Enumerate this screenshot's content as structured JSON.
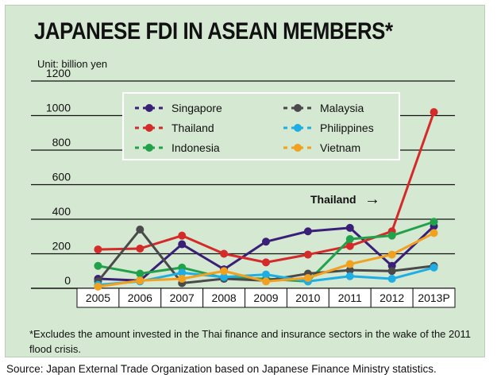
{
  "chart_data": {
    "type": "line",
    "title": "JAPANESE FDI IN ASEAN MEMBERS*",
    "unit_label": "Unit: billion yen",
    "categories": [
      "2005",
      "2006",
      "2007",
      "2008",
      "2009",
      "2010",
      "2011",
      "2012",
      "2013P"
    ],
    "ylim": [
      0,
      1200
    ],
    "yticks": [
      0,
      200,
      400,
      600,
      800,
      1000,
      1200
    ],
    "grid": true,
    "legend_position": "top",
    "series": [
      {
        "name": "Singapore",
        "color": "#3a1f78",
        "values": [
          55,
          45,
          255,
          110,
          270,
          330,
          350,
          130,
          360
        ]
      },
      {
        "name": "Thailand",
        "color": "#d42a2a",
        "values": [
          225,
          230,
          305,
          200,
          150,
          195,
          245,
          330,
          1020
        ]
      },
      {
        "name": "Indonesia",
        "color": "#21a24a",
        "values": [
          130,
          85,
          120,
          60,
          55,
          40,
          285,
          305,
          385
        ]
      },
      {
        "name": "Malaysia",
        "color": "#4a4a4a",
        "values": [
          40,
          340,
          30,
          55,
          45,
          85,
          105,
          100,
          130
        ]
      },
      {
        "name": "Philippines",
        "color": "#1eaee4",
        "values": [
          20,
          40,
          90,
          65,
          80,
          40,
          70,
          55,
          120
        ]
      },
      {
        "name": "Vietnam",
        "color": "#f2a01f",
        "values": [
          10,
          45,
          55,
          100,
          40,
          60,
          140,
          195,
          320
        ]
      }
    ],
    "annotation": {
      "text": "Thailand",
      "arrow": "→"
    }
  },
  "footnote": "*Excludes the amount invested in the Thai finance and insurance sectors in the wake of the 2011 flood crisis.",
  "source": "Source: Japan External Trade Organization based on Japanese Finance Ministry statistics."
}
